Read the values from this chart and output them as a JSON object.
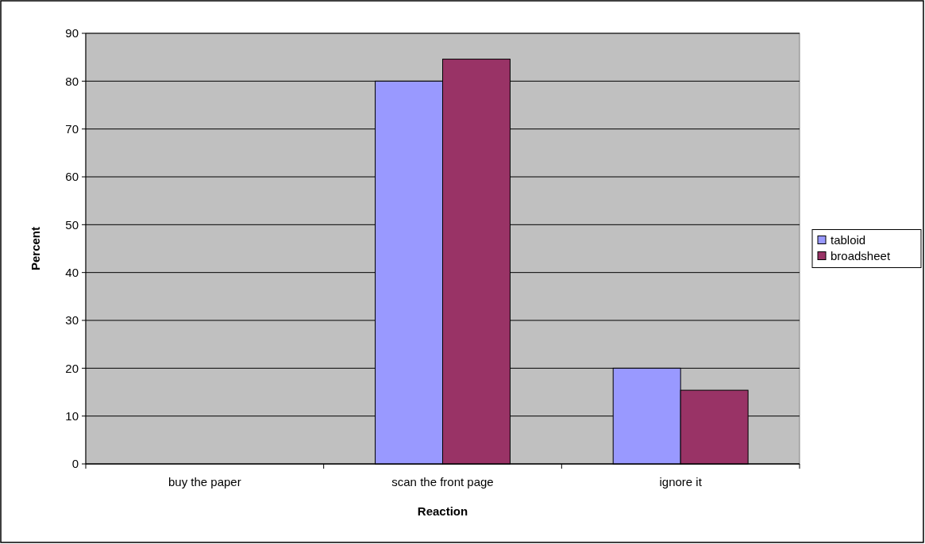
{
  "chart_data": {
    "type": "bar",
    "xlabel": "Reaction",
    "ylabel": "Percent",
    "categories": [
      "buy the paper",
      "scan the front page",
      "ignore it"
    ],
    "series": [
      {
        "name": "tabloid",
        "color": "#9999ff",
        "values": [
          0,
          80,
          20
        ]
      },
      {
        "name": "broadsheet",
        "color": "#993366",
        "values": [
          0,
          84.6,
          15.4
        ]
      }
    ],
    "ylim": [
      0,
      90
    ],
    "yticks": [
      0,
      10,
      20,
      30,
      40,
      50,
      60,
      70,
      80,
      90
    ],
    "grid": "y",
    "legend": "right"
  }
}
